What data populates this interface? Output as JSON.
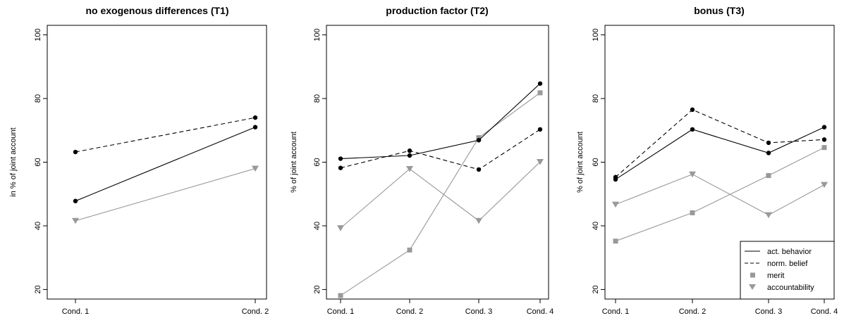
{
  "chart_data": [
    {
      "type": "line",
      "title": "no exogenous differences (T1)",
      "ylabel": "in % of joint account",
      "xlabel": "",
      "categories": [
        "Cond. 1",
        "Cond. 2"
      ],
      "ylim": [
        17,
        103
      ],
      "yticks": [
        20,
        40,
        60,
        80,
        100
      ],
      "grid": false,
      "series": [
        {
          "name": "act. behavior",
          "style": "solid",
          "color": "#000000",
          "marker": "dot",
          "values": [
            47.8,
            71.0
          ]
        },
        {
          "name": "norm. belief",
          "style": "dashed",
          "color": "#000000",
          "marker": "dot",
          "values": [
            63.2,
            74.0
          ]
        },
        {
          "name": "accountability",
          "style": "solid",
          "color": "#999999",
          "marker": "triangle",
          "values": [
            41.6,
            58.0
          ]
        }
      ]
    },
    {
      "type": "line",
      "title": "production factor (T2)",
      "ylabel": "% of joint account",
      "xlabel": "",
      "categories": [
        "Cond. 1",
        "Cond. 2",
        "Cond. 3",
        "Cond. 4"
      ],
      "ylim": [
        17,
        103
      ],
      "yticks": [
        20,
        40,
        60,
        80,
        100
      ],
      "grid": false,
      "series": [
        {
          "name": "act. behavior",
          "style": "solid",
          "color": "#000000",
          "marker": "dot",
          "values": [
            61.1,
            62.1,
            66.9,
            84.7
          ]
        },
        {
          "name": "norm. belief",
          "style": "dashed",
          "color": "#000000",
          "marker": "dot",
          "values": [
            58.2,
            63.6,
            57.7,
            70.3
          ]
        },
        {
          "name": "merit",
          "style": "solid",
          "color": "#999999",
          "marker": "square",
          "values": [
            18.1,
            32.4,
            67.7,
            81.8
          ]
        },
        {
          "name": "accountability",
          "style": "solid",
          "color": "#999999",
          "marker": "triangle",
          "values": [
            39.3,
            57.9,
            41.6,
            60.1
          ]
        }
      ]
    },
    {
      "type": "line",
      "title": "bonus (T3)",
      "ylabel": "% of joint account",
      "xlabel": "",
      "categories": [
        "Cond. 1",
        "Cond. 2",
        "Cond. 3",
        "Cond. 4"
      ],
      "ylim": [
        17,
        103
      ],
      "yticks": [
        20,
        40,
        60,
        80,
        100
      ],
      "grid": false,
      "legend_position": "bottom-right",
      "legend": [
        {
          "label": "act. behavior",
          "kind": "line-solid",
          "color": "#000000"
        },
        {
          "label": "norm. belief",
          "kind": "line-dashed",
          "color": "#000000"
        },
        {
          "label": "merit",
          "kind": "square",
          "color": "#999999"
        },
        {
          "label": "accountability",
          "kind": "triangle",
          "color": "#999999"
        }
      ],
      "series": [
        {
          "name": "act. behavior",
          "style": "solid",
          "color": "#000000",
          "marker": "dot",
          "values": [
            54.6,
            70.3,
            62.9,
            71.0
          ]
        },
        {
          "name": "norm. belief",
          "style": "dashed",
          "color": "#000000",
          "marker": "dot",
          "values": [
            55.3,
            76.5,
            66.1,
            67.1
          ]
        },
        {
          "name": "merit",
          "style": "solid",
          "color": "#999999",
          "marker": "square",
          "values": [
            35.2,
            44.1,
            55.8,
            64.6
          ]
        },
        {
          "name": "accountability",
          "style": "solid",
          "color": "#999999",
          "marker": "triangle",
          "values": [
            46.7,
            56.2,
            43.4,
            52.9
          ]
        }
      ]
    }
  ]
}
